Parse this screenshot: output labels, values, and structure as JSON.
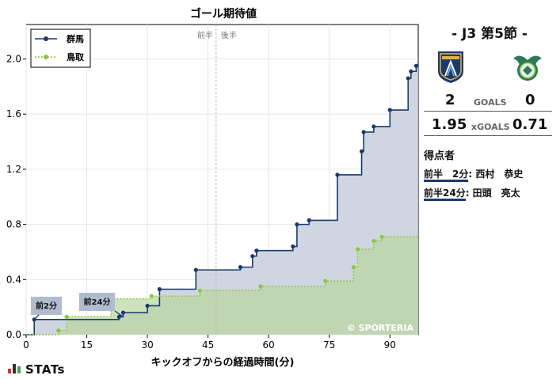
{
  "chart_data": {
    "type": "line",
    "title": "ゴール期待値",
    "xlabel": "キックオフからの経過時間(分)",
    "ylabel": "",
    "xlim": [
      0,
      97
    ],
    "ylim": [
      0,
      2.25
    ],
    "xticks": [
      0,
      15,
      30,
      45,
      60,
      75,
      90
    ],
    "yticks": [
      0.0,
      0.4,
      0.8,
      1.2,
      1.6,
      2.0
    ],
    "half_line": {
      "x": 47,
      "first_label": "前半",
      "second_label": "後半"
    },
    "legend_position": "top-left",
    "watermark": "© SPORTERIA",
    "series": [
      {
        "name": "群馬",
        "color": "#1a3a6c",
        "fill": "#c7cfdc",
        "end_x": 97,
        "x": [
          0,
          2,
          23,
          24,
          30,
          33,
          42,
          53,
          56,
          57,
          66,
          67,
          70,
          77,
          83,
          83.5,
          86,
          90,
          94.5,
          95.2,
          96.5
        ],
        "y": [
          0,
          0.11,
          0.13,
          0.16,
          0.21,
          0.33,
          0.47,
          0.49,
          0.57,
          0.61,
          0.64,
          0.8,
          0.83,
          1.16,
          1.33,
          1.47,
          1.51,
          1.63,
          1.86,
          1.91,
          1.95
        ]
      },
      {
        "name": "鳥取",
        "color": "#8cc63f",
        "fill": "#b9d6a0",
        "end_x": 97,
        "x": [
          0,
          8,
          10,
          21,
          31,
          43,
          58,
          74,
          81,
          82,
          86,
          88
        ],
        "y": [
          0,
          0.03,
          0.13,
          0.26,
          0.28,
          0.32,
          0.35,
          0.39,
          0.49,
          0.62,
          0.68,
          0.71
        ]
      }
    ],
    "annotations": [
      {
        "text": "前2分",
        "x": 2,
        "y": 0.11
      },
      {
        "text": "前24分",
        "x": 24,
        "y": 0.13
      }
    ]
  },
  "match": {
    "title": "- J3 第5節 -",
    "home_goals": "2",
    "away_goals": "0",
    "goals_label": "GOALS",
    "home_xg": "1.95",
    "away_xg": "0.71",
    "xg_label": "xGOALS",
    "home_color": "#1a3a6c",
    "away_color": "#2a7a5a",
    "home_emblem_icon": "gunma-crest-icon",
    "away_emblem_icon": "tottori-crest-icon"
  },
  "scorers": {
    "title": "得点者",
    "items": [
      {
        "time": "前半　2分",
        "name": ": 西村　恭史"
      },
      {
        "time": "前半24分",
        "name": ": 田頭　亮太"
      }
    ]
  },
  "footer": {
    "logo_text": "STATs"
  }
}
